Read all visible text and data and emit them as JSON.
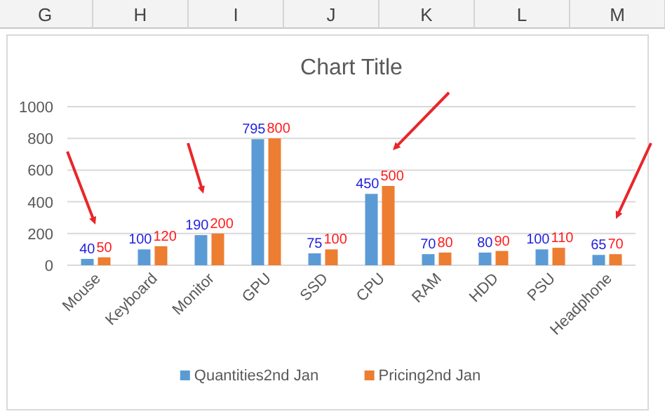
{
  "chart_data": {
    "type": "bar",
    "title": "Chart Title",
    "categories": [
      "Mouse",
      "Keyboard",
      "Monitor",
      "GPU",
      "SSD",
      "CPU",
      "RAM",
      "HDD",
      "PSU",
      "Headphone"
    ],
    "series": [
      {
        "name": "Quantities2nd Jan",
        "color": "#5b9bd5",
        "values": [
          40,
          100,
          190,
          795,
          75,
          450,
          70,
          80,
          100,
          65
        ]
      },
      {
        "name": "Pricing2nd Jan",
        "color": "#ed7d31",
        "values": [
          50,
          120,
          200,
          800,
          100,
          500,
          80,
          90,
          110,
          70
        ]
      }
    ],
    "ylim": [
      0,
      1000
    ],
    "yticks": [
      0,
      200,
      400,
      600,
      800,
      1000
    ],
    "grid": "y",
    "legend": "bottom",
    "data_labels": true,
    "annotations": [
      "G",
      "H",
      "I",
      "J",
      "K",
      "L",
      "M"
    ]
  }
}
